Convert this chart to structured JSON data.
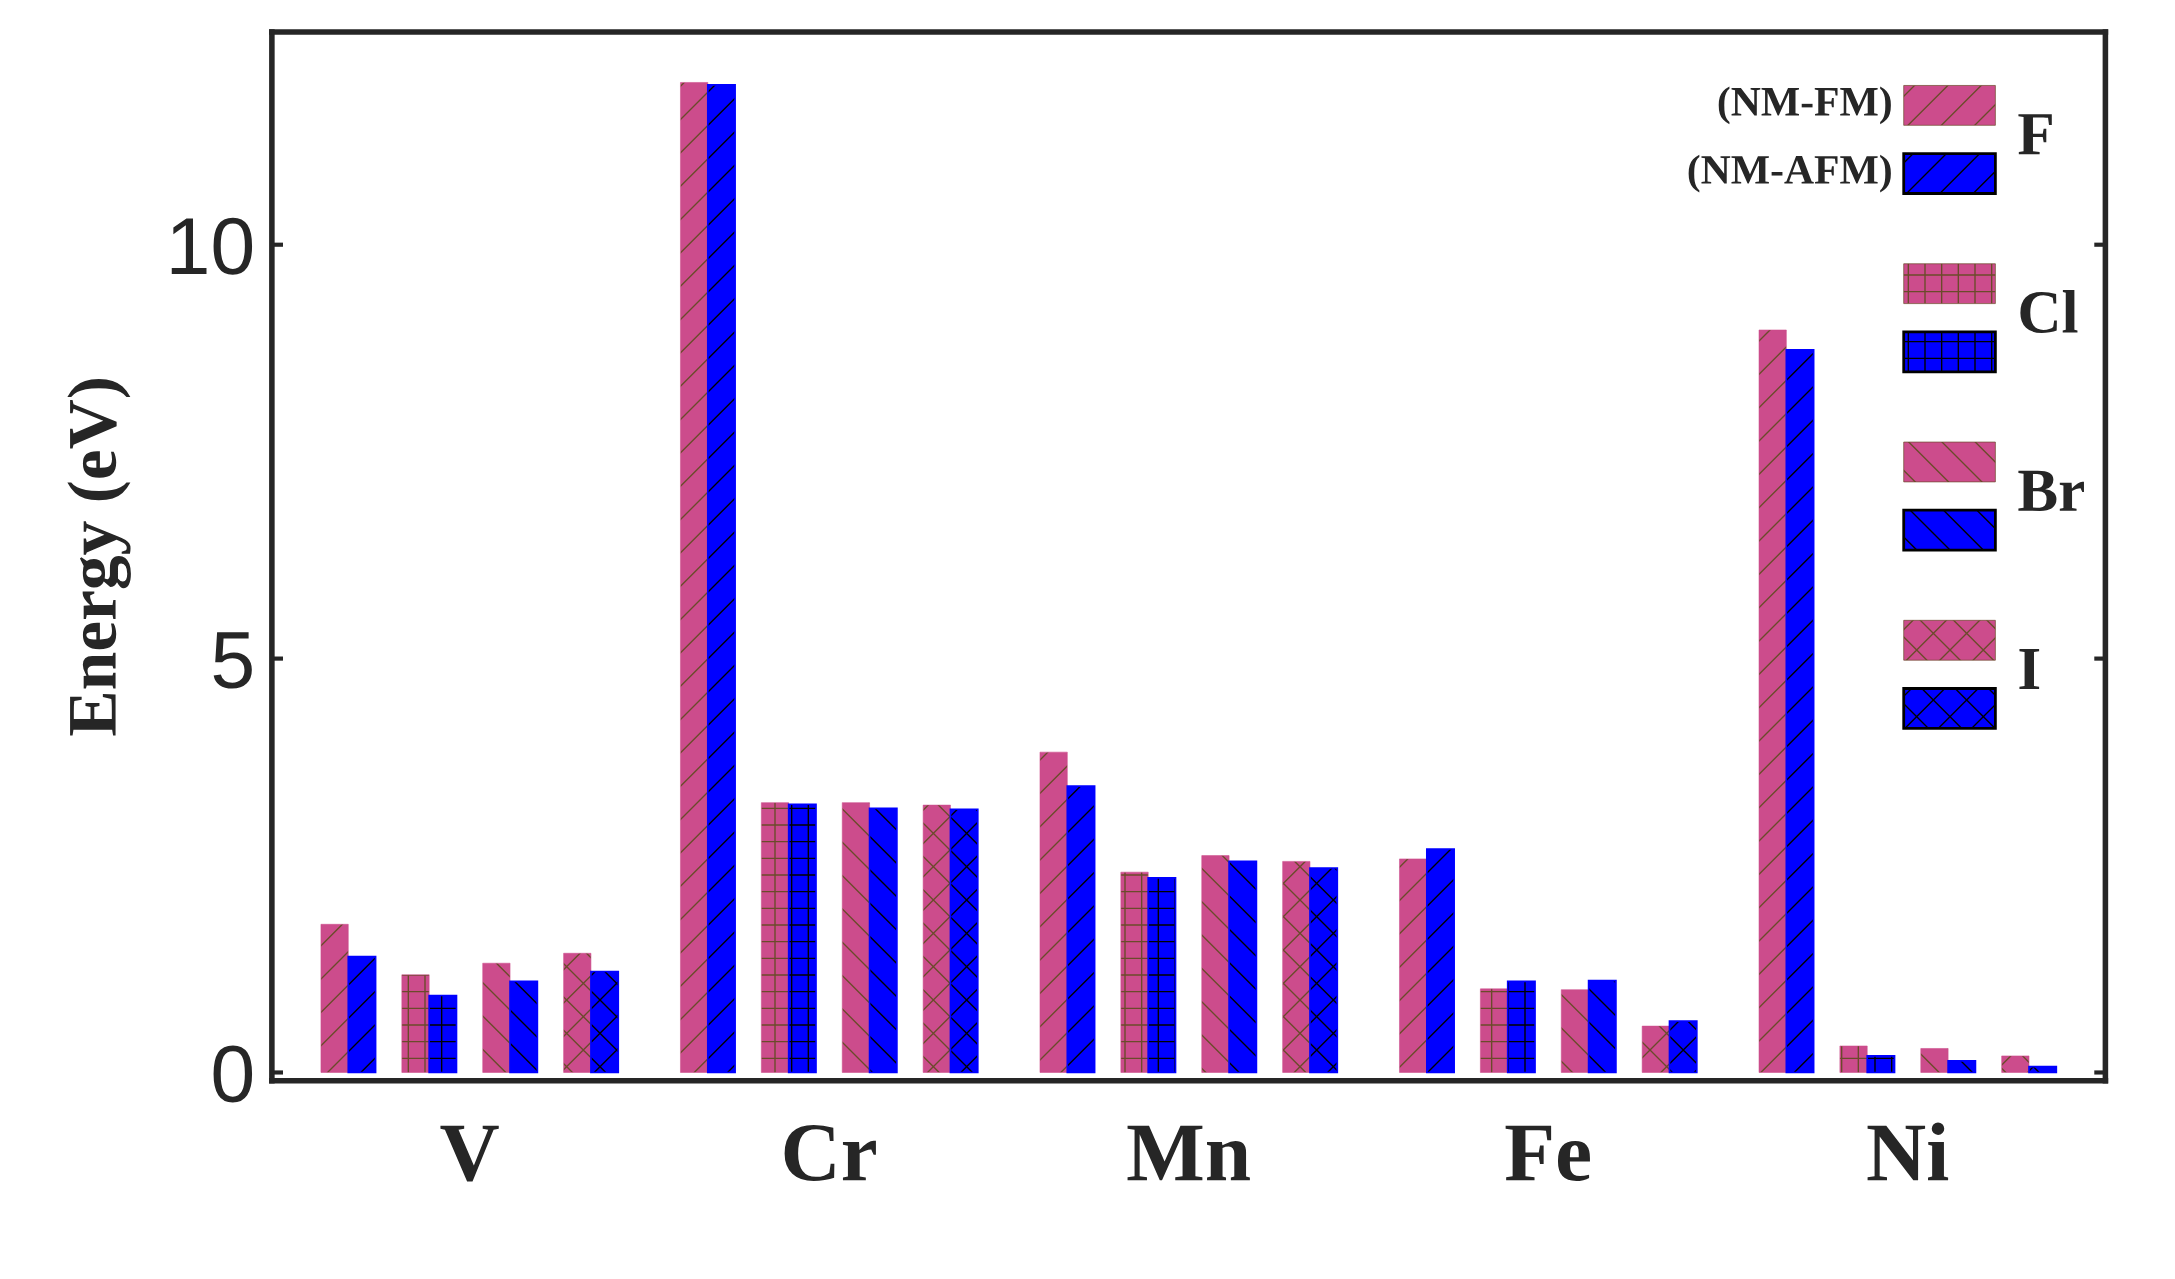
{
  "chart_data": {
    "type": "bar",
    "ylabel": "Energy (eV)",
    "categories": [
      "V",
      "Cr",
      "Mn",
      "Fe",
      "Ni"
    ],
    "series": [
      {
        "name": "F",
        "color": "#cc4c8c",
        "values": [
          1.79,
          11.96,
          3.87,
          2.58,
          8.97
        ]
      },
      {
        "color": "#0000ff",
        "values": [
          1.4,
          11.93,
          3.46,
          2.7,
          8.73
        ]
      },
      {
        "name": "Cl",
        "color": "#cc4c8c",
        "values": [
          1.18,
          3.26,
          2.42,
          1.01,
          0.32
        ]
      },
      {
        "color": "#0000ff",
        "values": [
          0.93,
          3.24,
          2.35,
          1.1,
          0.2
        ]
      },
      {
        "name": "Br",
        "color": "#cc4c8c",
        "values": [
          1.32,
          3.26,
          2.62,
          1.0,
          0.29
        ]
      },
      {
        "color": "#0000ff",
        "values": [
          1.1,
          3.19,
          2.55,
          1.11,
          0.14
        ]
      },
      {
        "name": "I",
        "color": "#cc4c8c",
        "values": [
          1.44,
          3.23,
          2.55,
          0.56,
          0.2
        ]
      },
      {
        "color": "#0000ff",
        "values": [
          1.22,
          3.18,
          2.47,
          0.62,
          0.07
        ]
      }
    ],
    "ylim": [
      -0.1,
      12.57
    ],
    "yticks": [
      0,
      5,
      10
    ],
    "grid": false,
    "legend": "top right",
    "annotations": [
      "(NM-FM)",
      "(NM-AFM)"
    ]
  }
}
